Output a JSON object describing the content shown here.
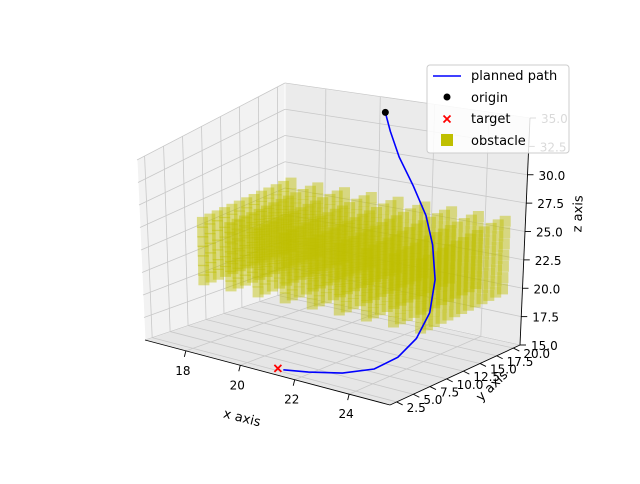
{
  "chart_data": {
    "type": "scatter",
    "projection": "3d",
    "xlabel": "x axis",
    "ylabel": "y axis",
    "zlabel": "z axis",
    "xlim": [
      16.5,
      25.5
    ],
    "ylim": [
      1.5,
      21
    ],
    "zlim": [
      15,
      35
    ],
    "x_ticks": [
      "18",
      "20",
      "22",
      "24"
    ],
    "y_ticks": [
      "2.5",
      "5.0",
      "7.5",
      "10.0",
      "12.5",
      "15.0",
      "17.5",
      "20.0"
    ],
    "z_ticks": [
      "15.0",
      "17.5",
      "20.0",
      "22.5",
      "25.0",
      "27.5",
      "30.0",
      "32.5",
      "35.0"
    ],
    "grid": true,
    "legend_position": "upper right",
    "legend": [
      {
        "label": "planned path",
        "marker": "line",
        "color": "#0000ff"
      },
      {
        "label": "origin",
        "marker": "circle",
        "color": "#000000"
      },
      {
        "label": "target",
        "marker": "x",
        "color": "#ff0000"
      },
      {
        "label": "obstacle",
        "marker": "square",
        "color": "#bfbf00"
      }
    ],
    "series": [
      {
        "name": "planned path",
        "kind": "line",
        "color": "#0000ff",
        "points": [
          {
            "x": 21.0,
            "y": 18.0,
            "z": 35.0
          },
          {
            "x": 21.3,
            "y": 17.6,
            "z": 33.5
          },
          {
            "x": 21.8,
            "y": 17.0,
            "z": 31.5
          },
          {
            "x": 22.6,
            "y": 16.0,
            "z": 29.5
          },
          {
            "x": 23.4,
            "y": 14.8,
            "z": 27.5
          },
          {
            "x": 24.0,
            "y": 13.5,
            "z": 25.5
          },
          {
            "x": 24.5,
            "y": 12.0,
            "z": 23.0
          },
          {
            "x": 24.7,
            "y": 10.5,
            "z": 20.5
          },
          {
            "x": 24.6,
            "y": 9.0,
            "z": 18.5
          },
          {
            "x": 24.3,
            "y": 7.5,
            "z": 17.0
          },
          {
            "x": 23.8,
            "y": 6.0,
            "z": 16.0
          },
          {
            "x": 23.0,
            "y": 4.5,
            "z": 15.5
          },
          {
            "x": 22.0,
            "y": 3.5,
            "z": 15.2
          },
          {
            "x": 21.2,
            "y": 3.0,
            "z": 15.0
          }
        ]
      },
      {
        "name": "origin",
        "kind": "point",
        "color": "#000000",
        "points": [
          {
            "x": 21.0,
            "y": 18.0,
            "z": 35.0
          }
        ]
      },
      {
        "name": "target",
        "kind": "point",
        "color": "#ff0000",
        "points": [
          {
            "x": 21.0,
            "y": 3.0,
            "z": 15.0
          }
        ]
      },
      {
        "name": "obstacle",
        "kind": "cube-grid",
        "color": "#bfbf00",
        "region": {
          "x": [
            17,
            25
          ],
          "y": [
            8,
            20
          ],
          "z": [
            20,
            26
          ]
        },
        "step": 1
      }
    ]
  }
}
